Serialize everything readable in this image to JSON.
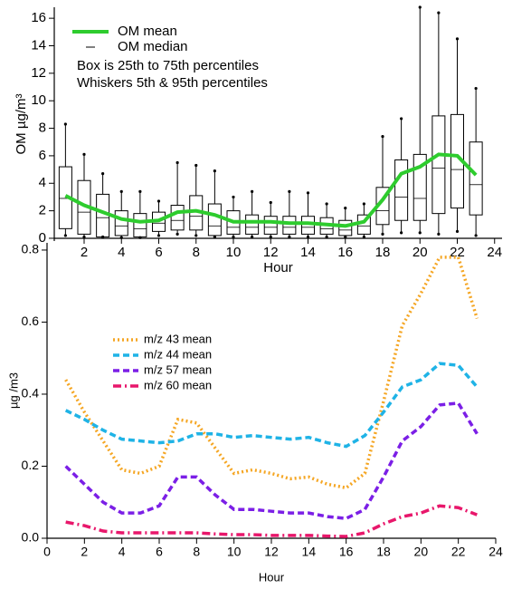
{
  "chart_data": [
    {
      "type": "box",
      "xlabel": "Hour",
      "ylabel": "OM µg/m³",
      "x": [
        1,
        2,
        3,
        4,
        5,
        6,
        7,
        8,
        9,
        10,
        11,
        12,
        13,
        14,
        15,
        16,
        17,
        18,
        19,
        20,
        21,
        22,
        23
      ],
      "p5": [
        0.2,
        0.1,
        0.1,
        0.05,
        0.05,
        0.2,
        0.3,
        0.2,
        0.1,
        0.1,
        0.1,
        0.1,
        0.1,
        0.1,
        0.1,
        0.1,
        0.1,
        0.3,
        0.4,
        0.4,
        0.3,
        0.5,
        0.2
      ],
      "p25": [
        0.7,
        0.3,
        0.1,
        0.2,
        0.1,
        0.5,
        0.6,
        0.6,
        0.2,
        0.3,
        0.3,
        0.3,
        0.3,
        0.3,
        0.3,
        0.2,
        0.3,
        1.0,
        1.3,
        1.3,
        1.8,
        2.2,
        1.7
      ],
      "median": [
        2.9,
        1.9,
        1.5,
        0.9,
        0.7,
        1.1,
        1.3,
        1.6,
        0.9,
        0.8,
        0.8,
        0.8,
        0.8,
        0.8,
        0.7,
        0.6,
        0.9,
        2.0,
        3.0,
        2.9,
        5.1,
        5.0,
        3.9
      ],
      "p75": [
        5.2,
        4.2,
        3.2,
        2.0,
        1.8,
        1.9,
        2.4,
        3.1,
        2.5,
        2.0,
        1.7,
        1.6,
        1.6,
        1.6,
        1.5,
        1.3,
        1.7,
        3.7,
        5.7,
        6.1,
        8.9,
        9.0,
        7.0
      ],
      "p95": [
        8.3,
        6.1,
        4.7,
        3.4,
        3.4,
        2.7,
        5.5,
        5.3,
        4.9,
        3.0,
        3.4,
        2.6,
        3.4,
        3.3,
        2.5,
        2.2,
        2.5,
        7.4,
        8.7,
        16.8,
        16.4,
        14.5,
        10.9
      ],
      "median_label": "OM median",
      "series": [
        {
          "name": "OM mean",
          "color": "#2ecc2e",
          "values": [
            3.1,
            2.4,
            1.9,
            1.4,
            1.2,
            1.3,
            1.9,
            2.0,
            1.7,
            1.2,
            1.2,
            1.2,
            1.1,
            1.1,
            1.0,
            0.9,
            1.2,
            2.8,
            4.7,
            5.2,
            6.1,
            6.0,
            4.6
          ]
        }
      ],
      "annotations": [
        "Box is 25th to 75th percentiles",
        "Whiskers 5th & 95th percentiles"
      ],
      "xlim": [
        0.4,
        24.4
      ],
      "ylim": [
        -0.2,
        16.8
      ],
      "xticks": [
        2,
        4,
        6,
        8,
        10,
        12,
        14,
        16,
        18,
        20,
        22,
        24
      ],
      "yticks": [
        0,
        2,
        4,
        6,
        8,
        10,
        12,
        14,
        16
      ]
    },
    {
      "type": "line",
      "xlabel": "Hour",
      "ylabel": "µg /m3",
      "x": [
        1,
        2,
        3,
        4,
        5,
        6,
        7,
        8,
        9,
        10,
        11,
        12,
        13,
        14,
        15,
        16,
        17,
        18,
        19,
        20,
        21,
        22,
        23
      ],
      "series": [
        {
          "name": "m/z 43 mean",
          "color": "#f5a623",
          "line_style": "dotted",
          "values": [
            0.44,
            0.35,
            0.27,
            0.19,
            0.18,
            0.2,
            0.33,
            0.32,
            0.25,
            0.18,
            0.19,
            0.18,
            0.165,
            0.17,
            0.15,
            0.14,
            0.18,
            0.38,
            0.59,
            0.68,
            0.78,
            0.78,
            0.61
          ]
        },
        {
          "name": "m/z 44 mean",
          "color": "#1fb3e6",
          "line_style": "dashed",
          "values": [
            0.355,
            0.33,
            0.3,
            0.275,
            0.27,
            0.265,
            0.27,
            0.29,
            0.29,
            0.28,
            0.285,
            0.28,
            0.275,
            0.28,
            0.265,
            0.255,
            0.285,
            0.35,
            0.42,
            0.44,
            0.485,
            0.48,
            0.42
          ]
        },
        {
          "name": "m/z 57 mean",
          "color": "#7b1fe6",
          "line_style": "dashed",
          "values": [
            0.2,
            0.15,
            0.1,
            0.07,
            0.07,
            0.09,
            0.17,
            0.17,
            0.12,
            0.08,
            0.08,
            0.075,
            0.07,
            0.07,
            0.06,
            0.055,
            0.08,
            0.17,
            0.27,
            0.31,
            0.37,
            0.375,
            0.29
          ]
        },
        {
          "name": "m/z 60 mean",
          "color": "#e8176b",
          "line_style": "dashdot",
          "values": [
            0.045,
            0.035,
            0.02,
            0.015,
            0.015,
            0.015,
            0.015,
            0.015,
            0.012,
            0.01,
            0.01,
            0.008,
            0.008,
            0.008,
            0.006,
            0.005,
            0.015,
            0.04,
            0.06,
            0.07,
            0.09,
            0.085,
            0.065
          ]
        }
      ],
      "xlim": [
        0,
        24
      ],
      "ylim": [
        0,
        0.82
      ],
      "xticks": [
        0,
        2,
        4,
        6,
        8,
        10,
        12,
        14,
        16,
        18,
        20,
        22,
        24
      ],
      "yticks": [
        {
          "value": 0,
          "label": "0.0"
        },
        0.2,
        0.4,
        0.6,
        0.8
      ]
    }
  ]
}
